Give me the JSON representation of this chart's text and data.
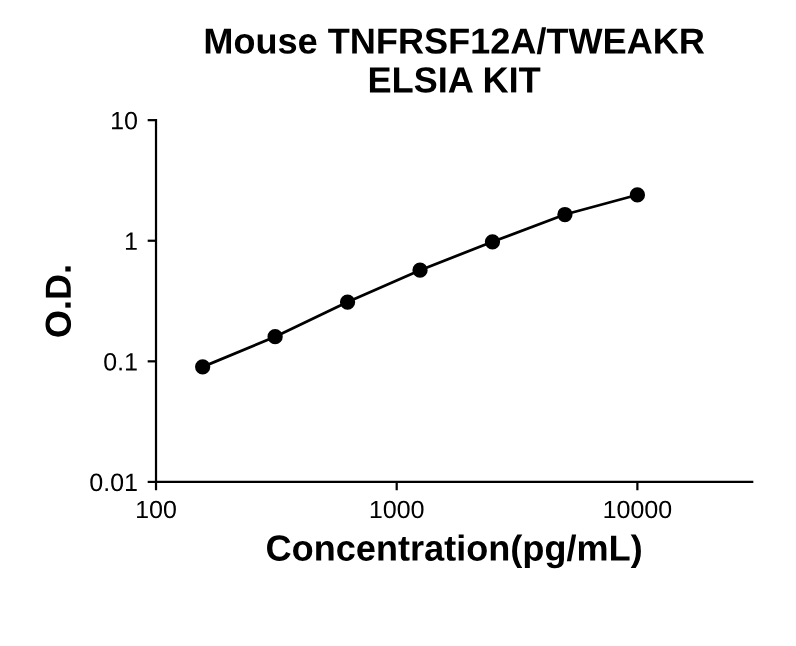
{
  "chart_data": {
    "type": "line",
    "title": "Mouse TNFRSF12A/TWEAKR\nELSIA KIT",
    "xlabel": "Concentration(pg/mL)",
    "ylabel": "O.D.",
    "x": [
      156.25,
      312.5,
      625,
      1250,
      2500,
      5000,
      10000
    ],
    "series": [
      {
        "color": "#000000",
        "values": [
          0.09,
          0.16,
          0.31,
          0.57,
          0.98,
          1.65,
          2.4
        ]
      }
    ],
    "log": "xy",
    "xlim": [
      100,
      30000
    ],
    "xticks": [
      100,
      1000,
      10000
    ],
    "ylim": [
      0.01,
      10
    ],
    "yticks": [
      0.01,
      0.1,
      1,
      10
    ],
    "marker": "circle",
    "line_style": "solid",
    "grid": false,
    "legend": false
  }
}
